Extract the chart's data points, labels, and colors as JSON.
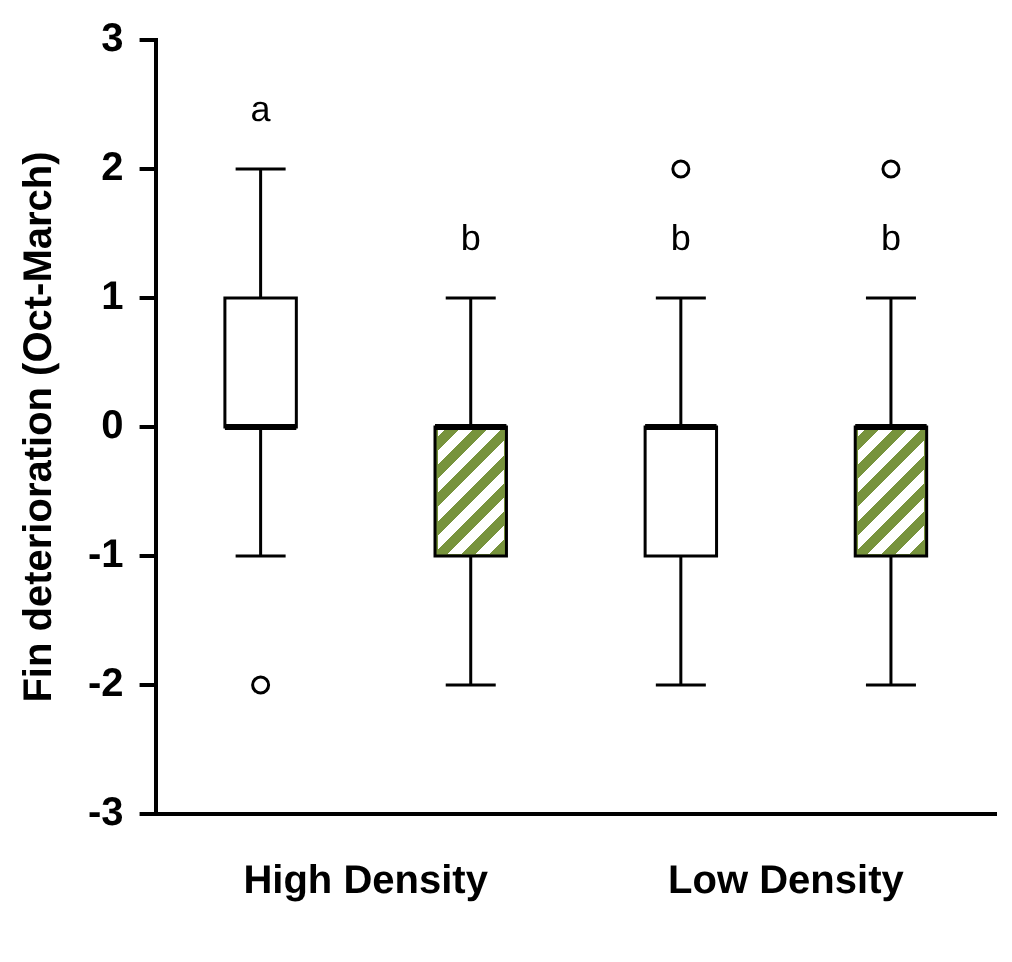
{
  "chart_data": {
    "type": "box",
    "ylabel": "Fin deterioration (Oct-March)",
    "categories": [
      "High Density",
      "Low Density"
    ],
    "series": [
      {
        "color": "#ffffff",
        "boxes": [
          {
            "low": -1,
            "q1": 0,
            "median": 0,
            "q3": 1,
            "high": 2,
            "outliers": [
              -2
            ]
          },
          {
            "low": -2,
            "q1": -1,
            "median": 0,
            "q3": 0,
            "high": 1,
            "outliers": [
              2
            ]
          }
        ]
      },
      {
        "color": "#77933c",
        "boxes": [
          {
            "low": -2,
            "q1": -1,
            "median": 0,
            "q3": 0,
            "high": 1
          },
          {
            "low": -2,
            "q1": -1,
            "median": 0,
            "q3": 0,
            "high": 1,
            "outliers": [
              2
            ]
          }
        ]
      }
    ],
    "ylim": [
      -3,
      3
    ],
    "yticks": [
      -3,
      -2,
      -1,
      0,
      1,
      2,
      3
    ],
    "grid": false,
    "legend": false,
    "annotations": [
      "a",
      "b",
      "b",
      "b"
    ]
  }
}
